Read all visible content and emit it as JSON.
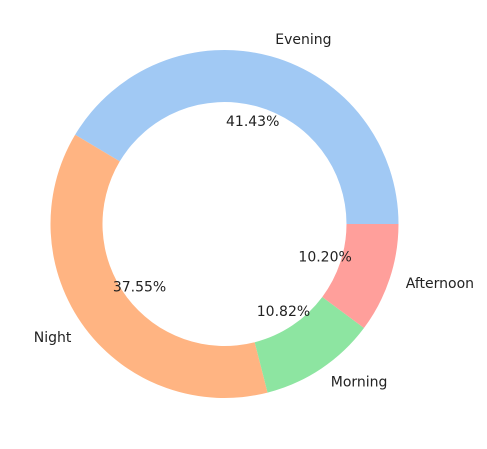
{
  "chart_data": {
    "type": "pie",
    "donut": true,
    "slices": [
      {
        "label": "Evening",
        "value": 41.43,
        "pct_label": "41.43%",
        "color": "#a1c9f4"
      },
      {
        "label": "Night",
        "value": 37.55,
        "pct_label": "37.55%",
        "color": "#ffb482"
      },
      {
        "label": "Morning",
        "value": 10.82,
        "pct_label": "10.82%",
        "color": "#8de5a1"
      },
      {
        "label": "Afternoon",
        "value": 10.2,
        "pct_label": "10.20%",
        "color": "#ff9f9b"
      }
    ],
    "start_angle_deg": 0,
    "direction": "counterclockwise"
  }
}
